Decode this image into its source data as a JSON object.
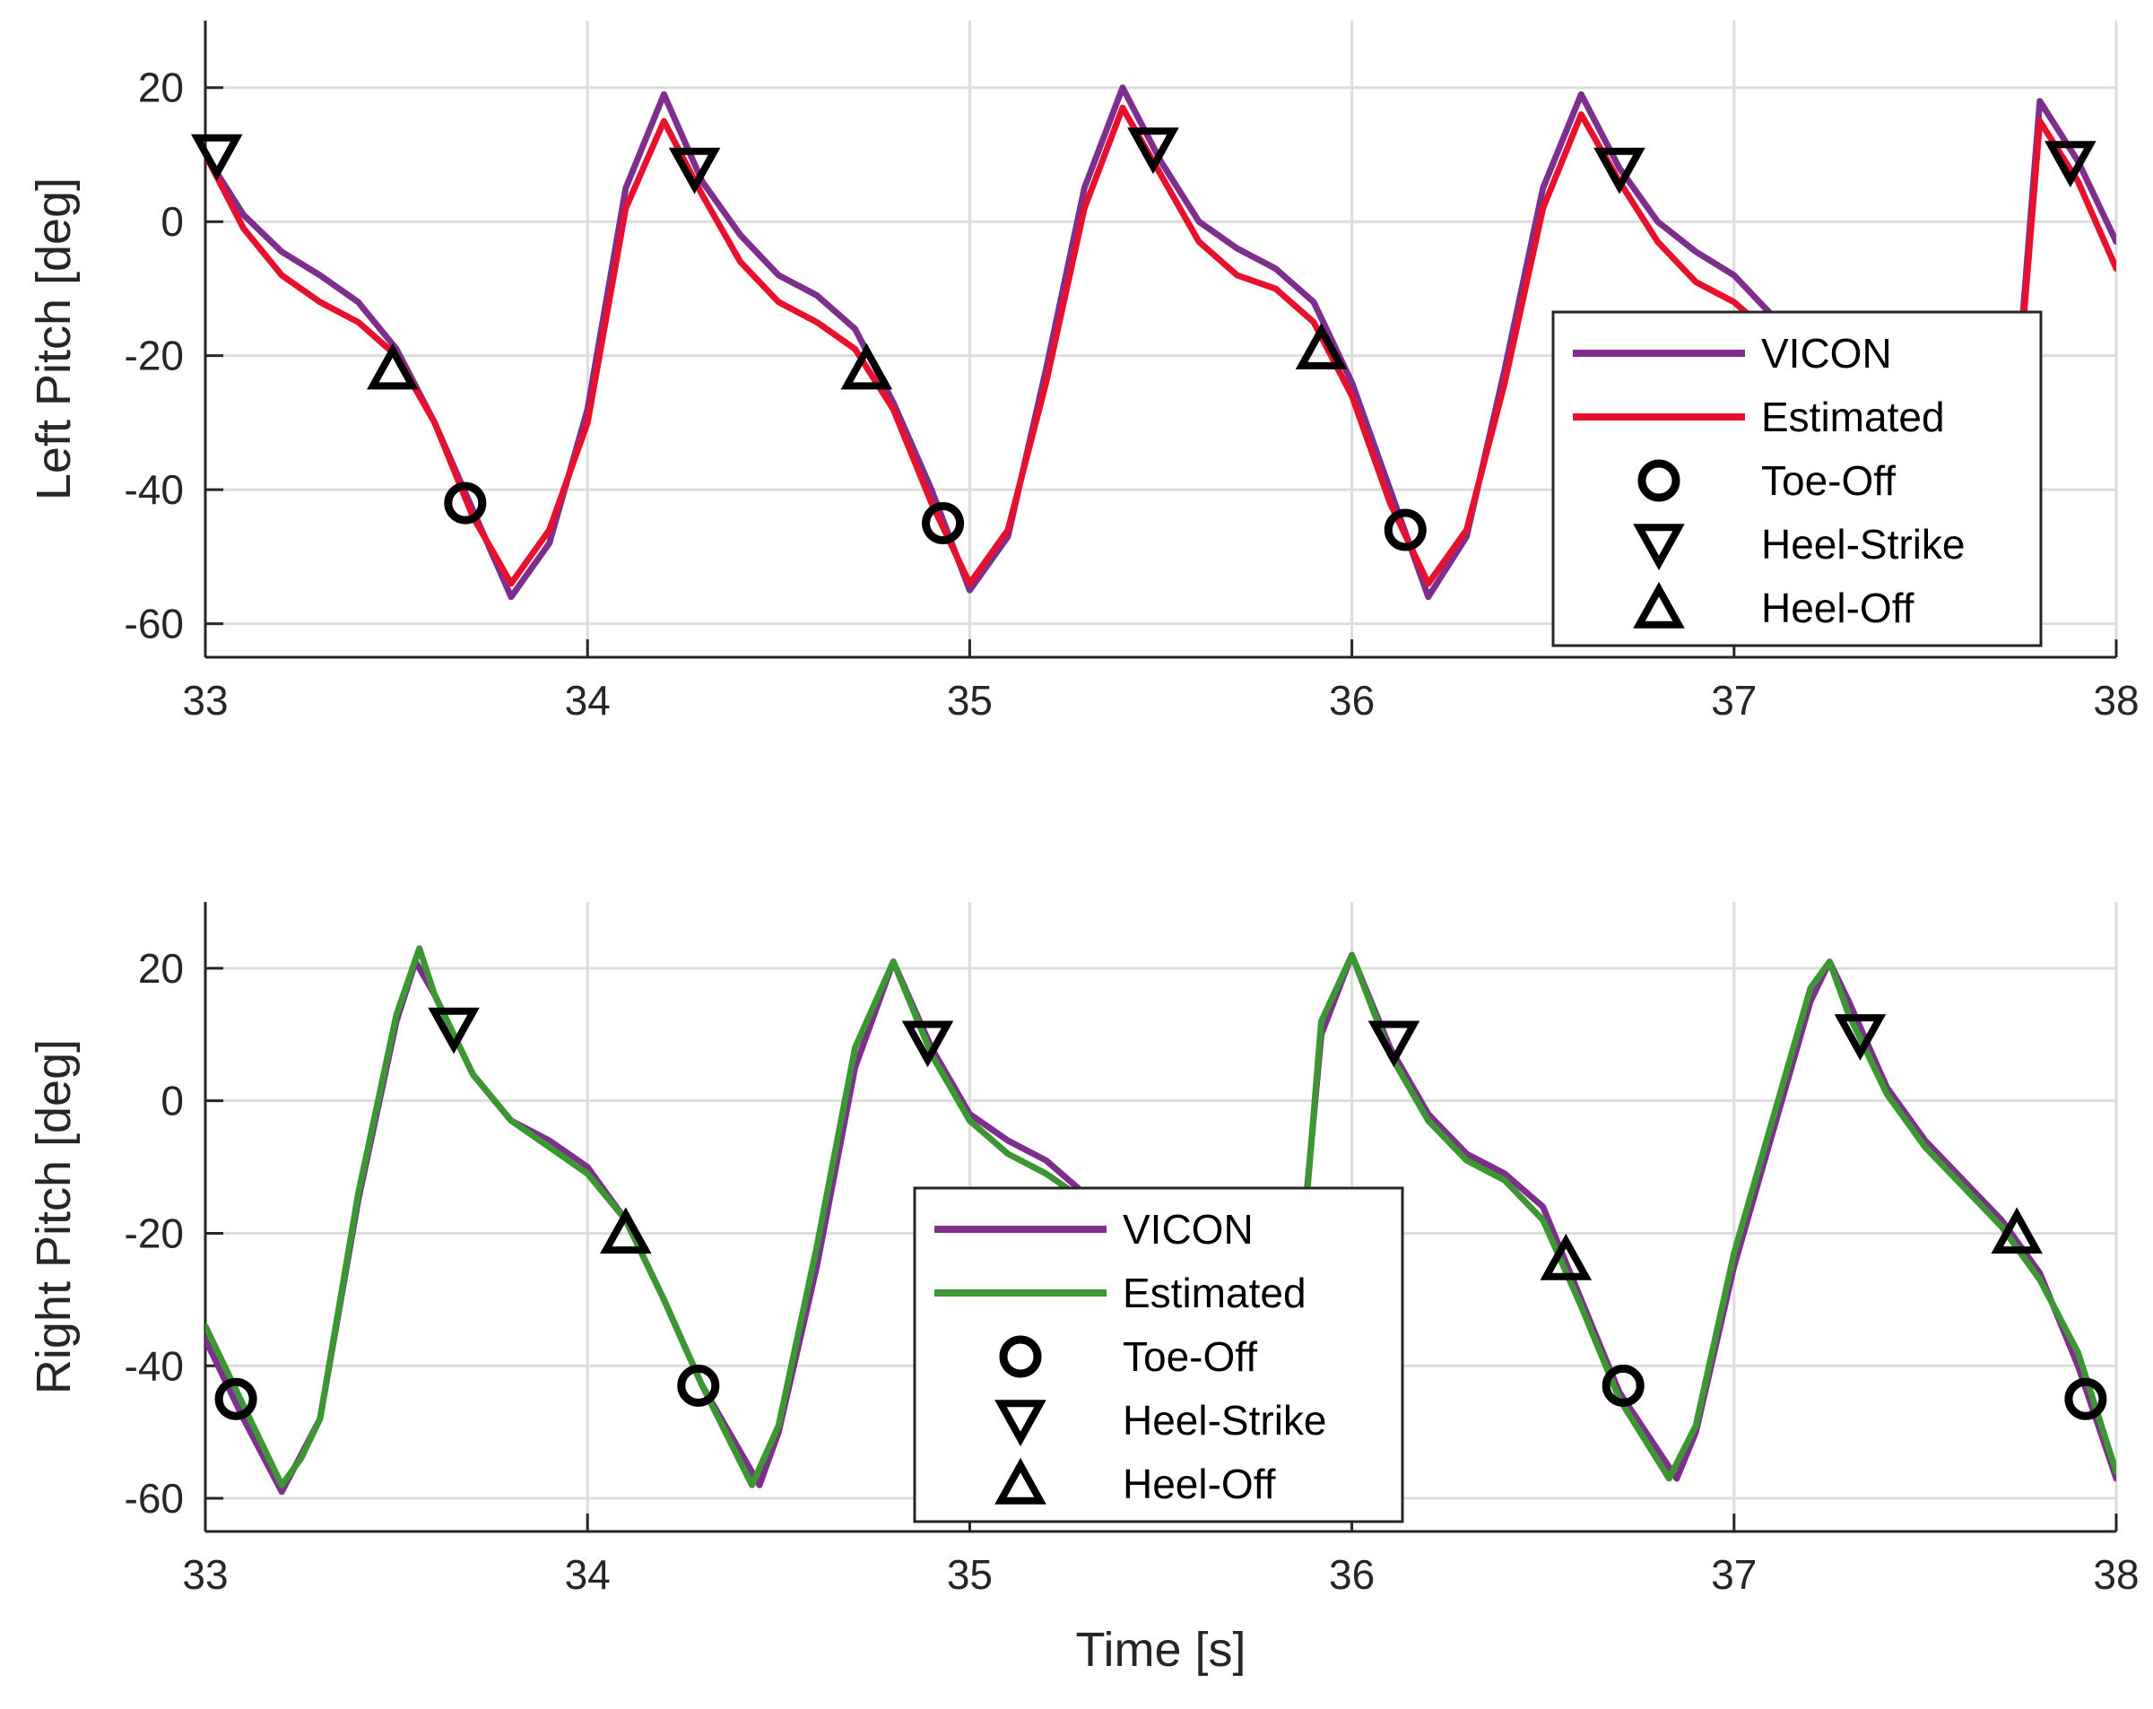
{
  "chart_data": [
    {
      "type": "line",
      "ylabel": "Left Pitch [deg]",
      "xlabel": "",
      "xlim": [
        33,
        38
      ],
      "ylim": [
        -65,
        30
      ],
      "xticks": [
        33,
        34,
        35,
        36,
        37,
        38
      ],
      "yticks": [
        -60,
        -40,
        -20,
        0,
        20
      ],
      "grid": true,
      "legend_position": "right",
      "series": [
        {
          "name": "VICON",
          "color": "#7e2f8e",
          "points": [
            [
              33.0,
              10
            ],
            [
              33.1,
              1
            ],
            [
              33.2,
              -4.5
            ],
            [
              33.3,
              -8
            ],
            [
              33.4,
              -12
            ],
            [
              33.5,
              -19
            ],
            [
              33.6,
              -30
            ],
            [
              33.7,
              -43
            ],
            [
              33.8,
              -56
            ],
            [
              33.9,
              -48
            ],
            [
              34.0,
              -28
            ],
            [
              34.1,
              5
            ],
            [
              34.2,
              19
            ],
            [
              34.3,
              6
            ],
            [
              34.4,
              -2
            ],
            [
              34.5,
              -8
            ],
            [
              34.6,
              -11
            ],
            [
              34.7,
              -16
            ],
            [
              34.8,
              -27
            ],
            [
              34.9,
              -40
            ],
            [
              35.0,
              -55
            ],
            [
              35.1,
              -47
            ],
            [
              35.2,
              -22
            ],
            [
              35.3,
              5
            ],
            [
              35.4,
              20
            ],
            [
              35.5,
              9
            ],
            [
              35.6,
              0
            ],
            [
              35.7,
              -4
            ],
            [
              35.8,
              -7
            ],
            [
              35.9,
              -12
            ],
            [
              36.0,
              -24
            ],
            [
              36.1,
              -40
            ],
            [
              36.2,
              -56
            ],
            [
              36.3,
              -47
            ],
            [
              36.4,
              -22
            ],
            [
              36.5,
              5
            ],
            [
              36.6,
              19
            ],
            [
              36.7,
              8
            ],
            [
              36.8,
              0
            ],
            [
              36.9,
              -4.5
            ],
            [
              37.0,
              -8
            ],
            [
              37.1,
              -14
            ],
            [
              37.75,
              -18
            ],
            [
              37.8,
              18
            ],
            [
              37.9,
              9
            ],
            [
              38.0,
              -3
            ]
          ]
        },
        {
          "name": "Estimated",
          "color": "#e8112d",
          "points": [
            [
              33.0,
              10
            ],
            [
              33.1,
              -1
            ],
            [
              33.2,
              -8
            ],
            [
              33.3,
              -12
            ],
            [
              33.4,
              -15
            ],
            [
              33.5,
              -20
            ],
            [
              33.6,
              -30
            ],
            [
              33.7,
              -44
            ],
            [
              33.8,
              -54
            ],
            [
              33.9,
              -46
            ],
            [
              34.0,
              -30
            ],
            [
              34.1,
              2
            ],
            [
              34.2,
              15
            ],
            [
              34.3,
              4
            ],
            [
              34.4,
              -6
            ],
            [
              34.5,
              -12
            ],
            [
              34.6,
              -15
            ],
            [
              34.7,
              -19
            ],
            [
              34.8,
              -28
            ],
            [
              34.9,
              -42
            ],
            [
              35.0,
              -54
            ],
            [
              35.1,
              -46
            ],
            [
              35.2,
              -24
            ],
            [
              35.3,
              2
            ],
            [
              35.4,
              17
            ],
            [
              35.5,
              7
            ],
            [
              35.6,
              -3
            ],
            [
              35.7,
              -8
            ],
            [
              35.8,
              -10
            ],
            [
              35.9,
              -15
            ],
            [
              36.0,
              -26
            ],
            [
              36.1,
              -42
            ],
            [
              36.2,
              -54
            ],
            [
              36.3,
              -46
            ],
            [
              36.4,
              -24
            ],
            [
              36.5,
              2
            ],
            [
              36.6,
              16
            ],
            [
              36.7,
              6
            ],
            [
              36.8,
              -3
            ],
            [
              36.9,
              -9
            ],
            [
              37.0,
              -12
            ],
            [
              37.1,
              -17
            ],
            [
              37.75,
              -20
            ],
            [
              37.8,
              15
            ],
            [
              37.9,
              6
            ],
            [
              38.0,
              -7
            ]
          ]
        },
        {
          "name": "Toe-Off",
          "marker": "circle",
          "points": [
            [
              33.68,
              -42
            ],
            [
              34.93,
              -45
            ],
            [
              36.14,
              -46
            ]
          ]
        },
        {
          "name": "Heel-Strike",
          "marker": "triangle-down",
          "points": [
            [
              33.03,
              10
            ],
            [
              34.28,
              8
            ],
            [
              35.48,
              11
            ],
            [
              36.7,
              8
            ],
            [
              37.88,
              9
            ]
          ]
        },
        {
          "name": "Heel-Off",
          "marker": "triangle-up",
          "points": [
            [
              33.49,
              -22
            ],
            [
              34.73,
              -22
            ],
            [
              35.92,
              -19
            ]
          ]
        }
      ]
    },
    {
      "type": "line",
      "ylabel": "Right Pitch [deg]",
      "xlabel": "Time [s]",
      "xlim": [
        33,
        38
      ],
      "ylim": [
        -65,
        30
      ],
      "xticks": [
        33,
        34,
        35,
        36,
        37,
        38
      ],
      "yticks": [
        -60,
        -40,
        -20,
        0,
        20
      ],
      "grid": true,
      "legend_position": "center",
      "series": [
        {
          "name": "VICON",
          "color": "#7e2f8e",
          "points": [
            [
              33.0,
              -36
            ],
            [
              33.1,
              -48
            ],
            [
              33.2,
              -59
            ],
            [
              33.3,
              -48
            ],
            [
              33.4,
              -15
            ],
            [
              33.5,
              12
            ],
            [
              33.55,
              21
            ],
            [
              33.6,
              16
            ],
            [
              33.7,
              4
            ],
            [
              33.8,
              -3
            ],
            [
              33.9,
              -6
            ],
            [
              34.0,
              -10
            ],
            [
              34.1,
              -18
            ],
            [
              34.2,
              -30
            ],
            [
              34.3,
              -43
            ],
            [
              34.45,
              -58
            ],
            [
              34.5,
              -50
            ],
            [
              34.6,
              -25
            ],
            [
              34.7,
              5
            ],
            [
              34.8,
              21
            ],
            [
              34.9,
              8
            ],
            [
              35.0,
              -2
            ],
            [
              35.1,
              -6
            ],
            [
              35.2,
              -9
            ],
            [
              35.3,
              -14
            ],
            [
              35.88,
              -15
            ],
            [
              35.92,
              10
            ],
            [
              36.0,
              22
            ],
            [
              36.1,
              8
            ],
            [
              36.2,
              -2
            ],
            [
              36.3,
              -8
            ],
            [
              36.4,
              -11
            ],
            [
              36.5,
              -16
            ],
            [
              36.6,
              -30
            ],
            [
              36.7,
              -44
            ],
            [
              36.85,
              -57
            ],
            [
              36.9,
              -50
            ],
            [
              37.0,
              -25
            ],
            [
              37.1,
              -5
            ],
            [
              37.2,
              15
            ],
            [
              37.25,
              21
            ],
            [
              37.3,
              15
            ],
            [
              37.4,
              2
            ],
            [
              37.5,
              -6
            ],
            [
              37.6,
              -12
            ],
            [
              37.7,
              -18
            ],
            [
              37.8,
              -26
            ],
            [
              37.9,
              -40
            ],
            [
              38.0,
              -57
            ]
          ]
        },
        {
          "name": "Estimated",
          "color": "#3c9632",
          "points": [
            [
              33.0,
              -34
            ],
            [
              33.1,
              -46
            ],
            [
              33.2,
              -58
            ],
            [
              33.25,
              -54
            ],
            [
              33.3,
              -48
            ],
            [
              33.4,
              -14
            ],
            [
              33.5,
              13
            ],
            [
              33.56,
              23
            ],
            [
              33.6,
              16
            ],
            [
              33.7,
              4
            ],
            [
              33.8,
              -3
            ],
            [
              33.9,
              -7
            ],
            [
              34.0,
              -11
            ],
            [
              34.1,
              -18
            ],
            [
              34.2,
              -30
            ],
            [
              34.3,
              -43
            ],
            [
              34.43,
              -58
            ],
            [
              34.5,
              -49
            ],
            [
              34.6,
              -22
            ],
            [
              34.7,
              8
            ],
            [
              34.8,
              21
            ],
            [
              34.9,
              7
            ],
            [
              35.0,
              -3
            ],
            [
              35.1,
              -8
            ],
            [
              35.2,
              -11
            ],
            [
              35.3,
              -15
            ],
            [
              35.88,
              -16
            ],
            [
              35.92,
              12
            ],
            [
              36.0,
              22
            ],
            [
              36.1,
              7
            ],
            [
              36.2,
              -3
            ],
            [
              36.3,
              -9
            ],
            [
              36.4,
              -12
            ],
            [
              36.5,
              -18
            ],
            [
              36.6,
              -31
            ],
            [
              36.7,
              -45
            ],
            [
              36.83,
              -57
            ],
            [
              36.9,
              -49
            ],
            [
              37.0,
              -23
            ],
            [
              37.1,
              -3
            ],
            [
              37.2,
              17
            ],
            [
              37.25,
              21
            ],
            [
              37.3,
              13
            ],
            [
              37.4,
              1
            ],
            [
              37.5,
              -7
            ],
            [
              37.6,
              -13
            ],
            [
              37.7,
              -19
            ],
            [
              37.8,
              -27
            ],
            [
              37.9,
              -38
            ],
            [
              38.0,
              -56
            ]
          ]
        },
        {
          "name": "Toe-Off",
          "marker": "circle",
          "points": [
            [
              33.08,
              -45
            ],
            [
              34.29,
              -43
            ],
            [
              36.71,
              -43
            ],
            [
              37.92,
              -45
            ]
          ]
        },
        {
          "name": "Heel-Strike",
          "marker": "triangle-down",
          "points": [
            [
              33.65,
              11
            ],
            [
              34.89,
              9
            ],
            [
              36.11,
              9
            ],
            [
              37.33,
              10
            ]
          ]
        },
        {
          "name": "Heel-Off",
          "marker": "triangle-up",
          "points": [
            [
              34.1,
              -20
            ],
            [
              36.56,
              -24
            ],
            [
              37.74,
              -20
            ]
          ]
        }
      ]
    }
  ]
}
